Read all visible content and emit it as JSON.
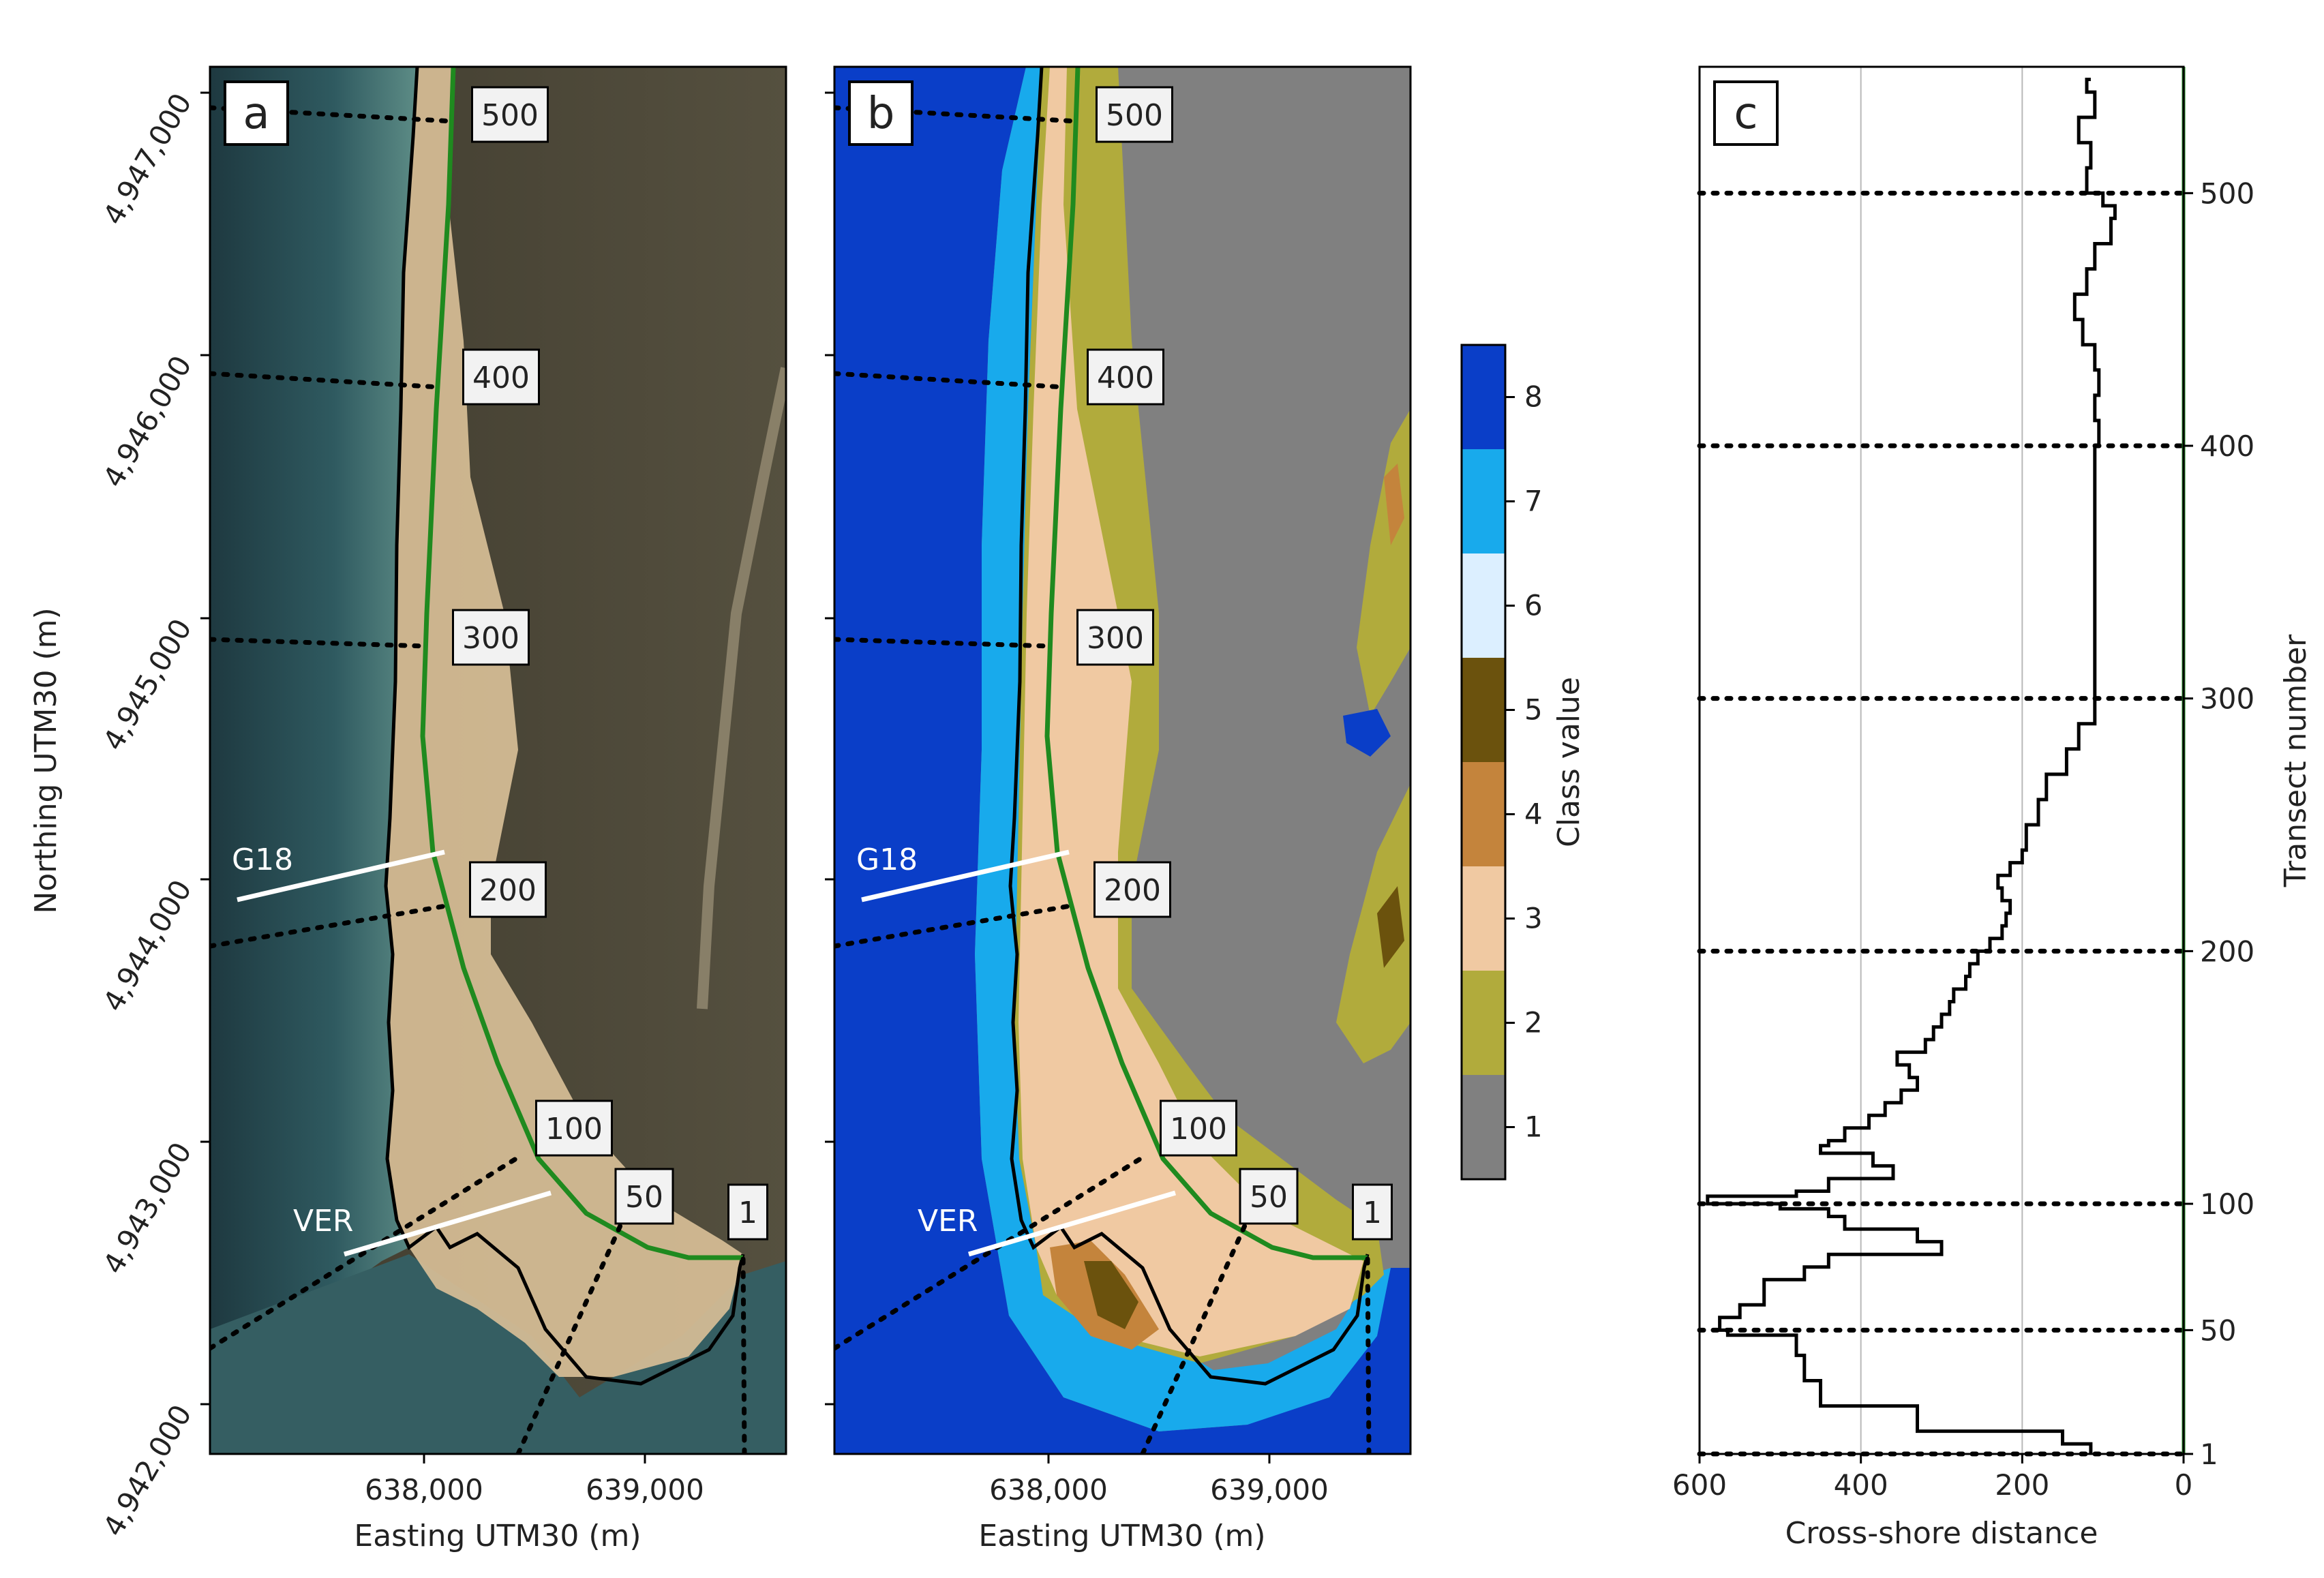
{
  "colors": {
    "green_line": "#1f8a1f",
    "black_line": "#000000",
    "white_line": "#ffffff",
    "label_box": "#f2f2f2",
    "satellite_sea": "#23404a",
    "satellite_forest": "#4a4535",
    "satellite_sand": "#d8c09a"
  },
  "chart_data": [
    {
      "type": "map",
      "panel_label": "a",
      "background": "satellite image",
      "xlabel": "Easting UTM30 (m)",
      "ylabel": "Northing UTM30 (m)",
      "x_ticks": [
        "638,000",
        "639,000"
      ],
      "y_ticks": [
        "4,942,000",
        "4,943,000",
        "4,944,000",
        "4,945,000",
        "4,946,000",
        "4,947,000"
      ],
      "transect_labels": [
        "500",
        "400",
        "300",
        "200",
        "100",
        "50",
        "1"
      ],
      "profile_labels": [
        "G18",
        "VER"
      ]
    },
    {
      "type": "map",
      "panel_label": "b",
      "background": "classification map",
      "xlabel": "Easting UTM30 (m)",
      "x_ticks": [
        "638,000",
        "639,000"
      ],
      "transect_labels": [
        "500",
        "400",
        "300",
        "200",
        "100",
        "50",
        "1"
      ],
      "profile_labels": [
        "G18",
        "VER"
      ],
      "colorbar": {
        "label": "Class value",
        "classes": [
          {
            "value": "1",
            "color": "#808080"
          },
          {
            "value": "2",
            "color": "#b1ab3c"
          },
          {
            "value": "3",
            "color": "#f0c9a2"
          },
          {
            "value": "4",
            "color": "#c4843c"
          },
          {
            "value": "5",
            "color": "#6b520d"
          },
          {
            "value": "6",
            "color": "#dcefff"
          },
          {
            "value": "7",
            "color": "#18aaec"
          },
          {
            "value": "8",
            "color": "#0a3ec8"
          }
        ]
      }
    },
    {
      "type": "line",
      "panel_label": "c",
      "xlabel": "Cross-shore distance",
      "ylabel": "Transect number",
      "xlim": [
        600,
        0
      ],
      "x_ticks": [
        "600",
        "400",
        "200",
        "0"
      ],
      "ylim": [
        1,
        550
      ],
      "y_ticks": [
        "1",
        "50",
        "100",
        "200",
        "300",
        "400",
        "500"
      ],
      "grid": "vertical",
      "series": [
        {
          "transect": [
            1,
            5,
            10,
            20,
            30,
            40,
            48,
            50,
            55,
            60,
            65,
            70,
            75,
            80,
            85,
            90,
            95,
            98,
            100,
            103,
            105,
            110,
            115,
            120,
            123,
            125,
            130,
            135,
            140,
            145,
            150,
            155,
            160,
            165,
            170,
            175,
            180,
            185,
            190,
            195,
            200,
            205,
            210,
            215,
            220,
            225,
            230,
            235,
            240,
            250,
            260,
            270,
            280,
            290,
            300,
            320,
            340,
            360,
            380,
            400,
            410,
            420,
            430,
            440,
            450,
            460,
            470,
            480,
            490,
            495,
            500,
            510,
            520,
            530,
            540,
            545
          ],
          "distance": [
            115,
            150,
            330,
            450,
            470,
            480,
            565,
            575,
            550,
            520,
            520,
            470,
            440,
            300,
            330,
            420,
            440,
            500,
            590,
            480,
            440,
            360,
            385,
            450,
            440,
            420,
            390,
            370,
            350,
            330,
            340,
            355,
            320,
            310,
            300,
            290,
            285,
            270,
            265,
            255,
            240,
            225,
            220,
            215,
            225,
            230,
            215,
            200,
            195,
            180,
            170,
            145,
            130,
            110,
            110,
            110,
            110,
            110,
            110,
            105,
            110,
            105,
            110,
            125,
            135,
            120,
            110,
            90,
            85,
            100,
            120,
            115,
            130,
            110,
            120,
            115
          ]
        }
      ]
    }
  ]
}
